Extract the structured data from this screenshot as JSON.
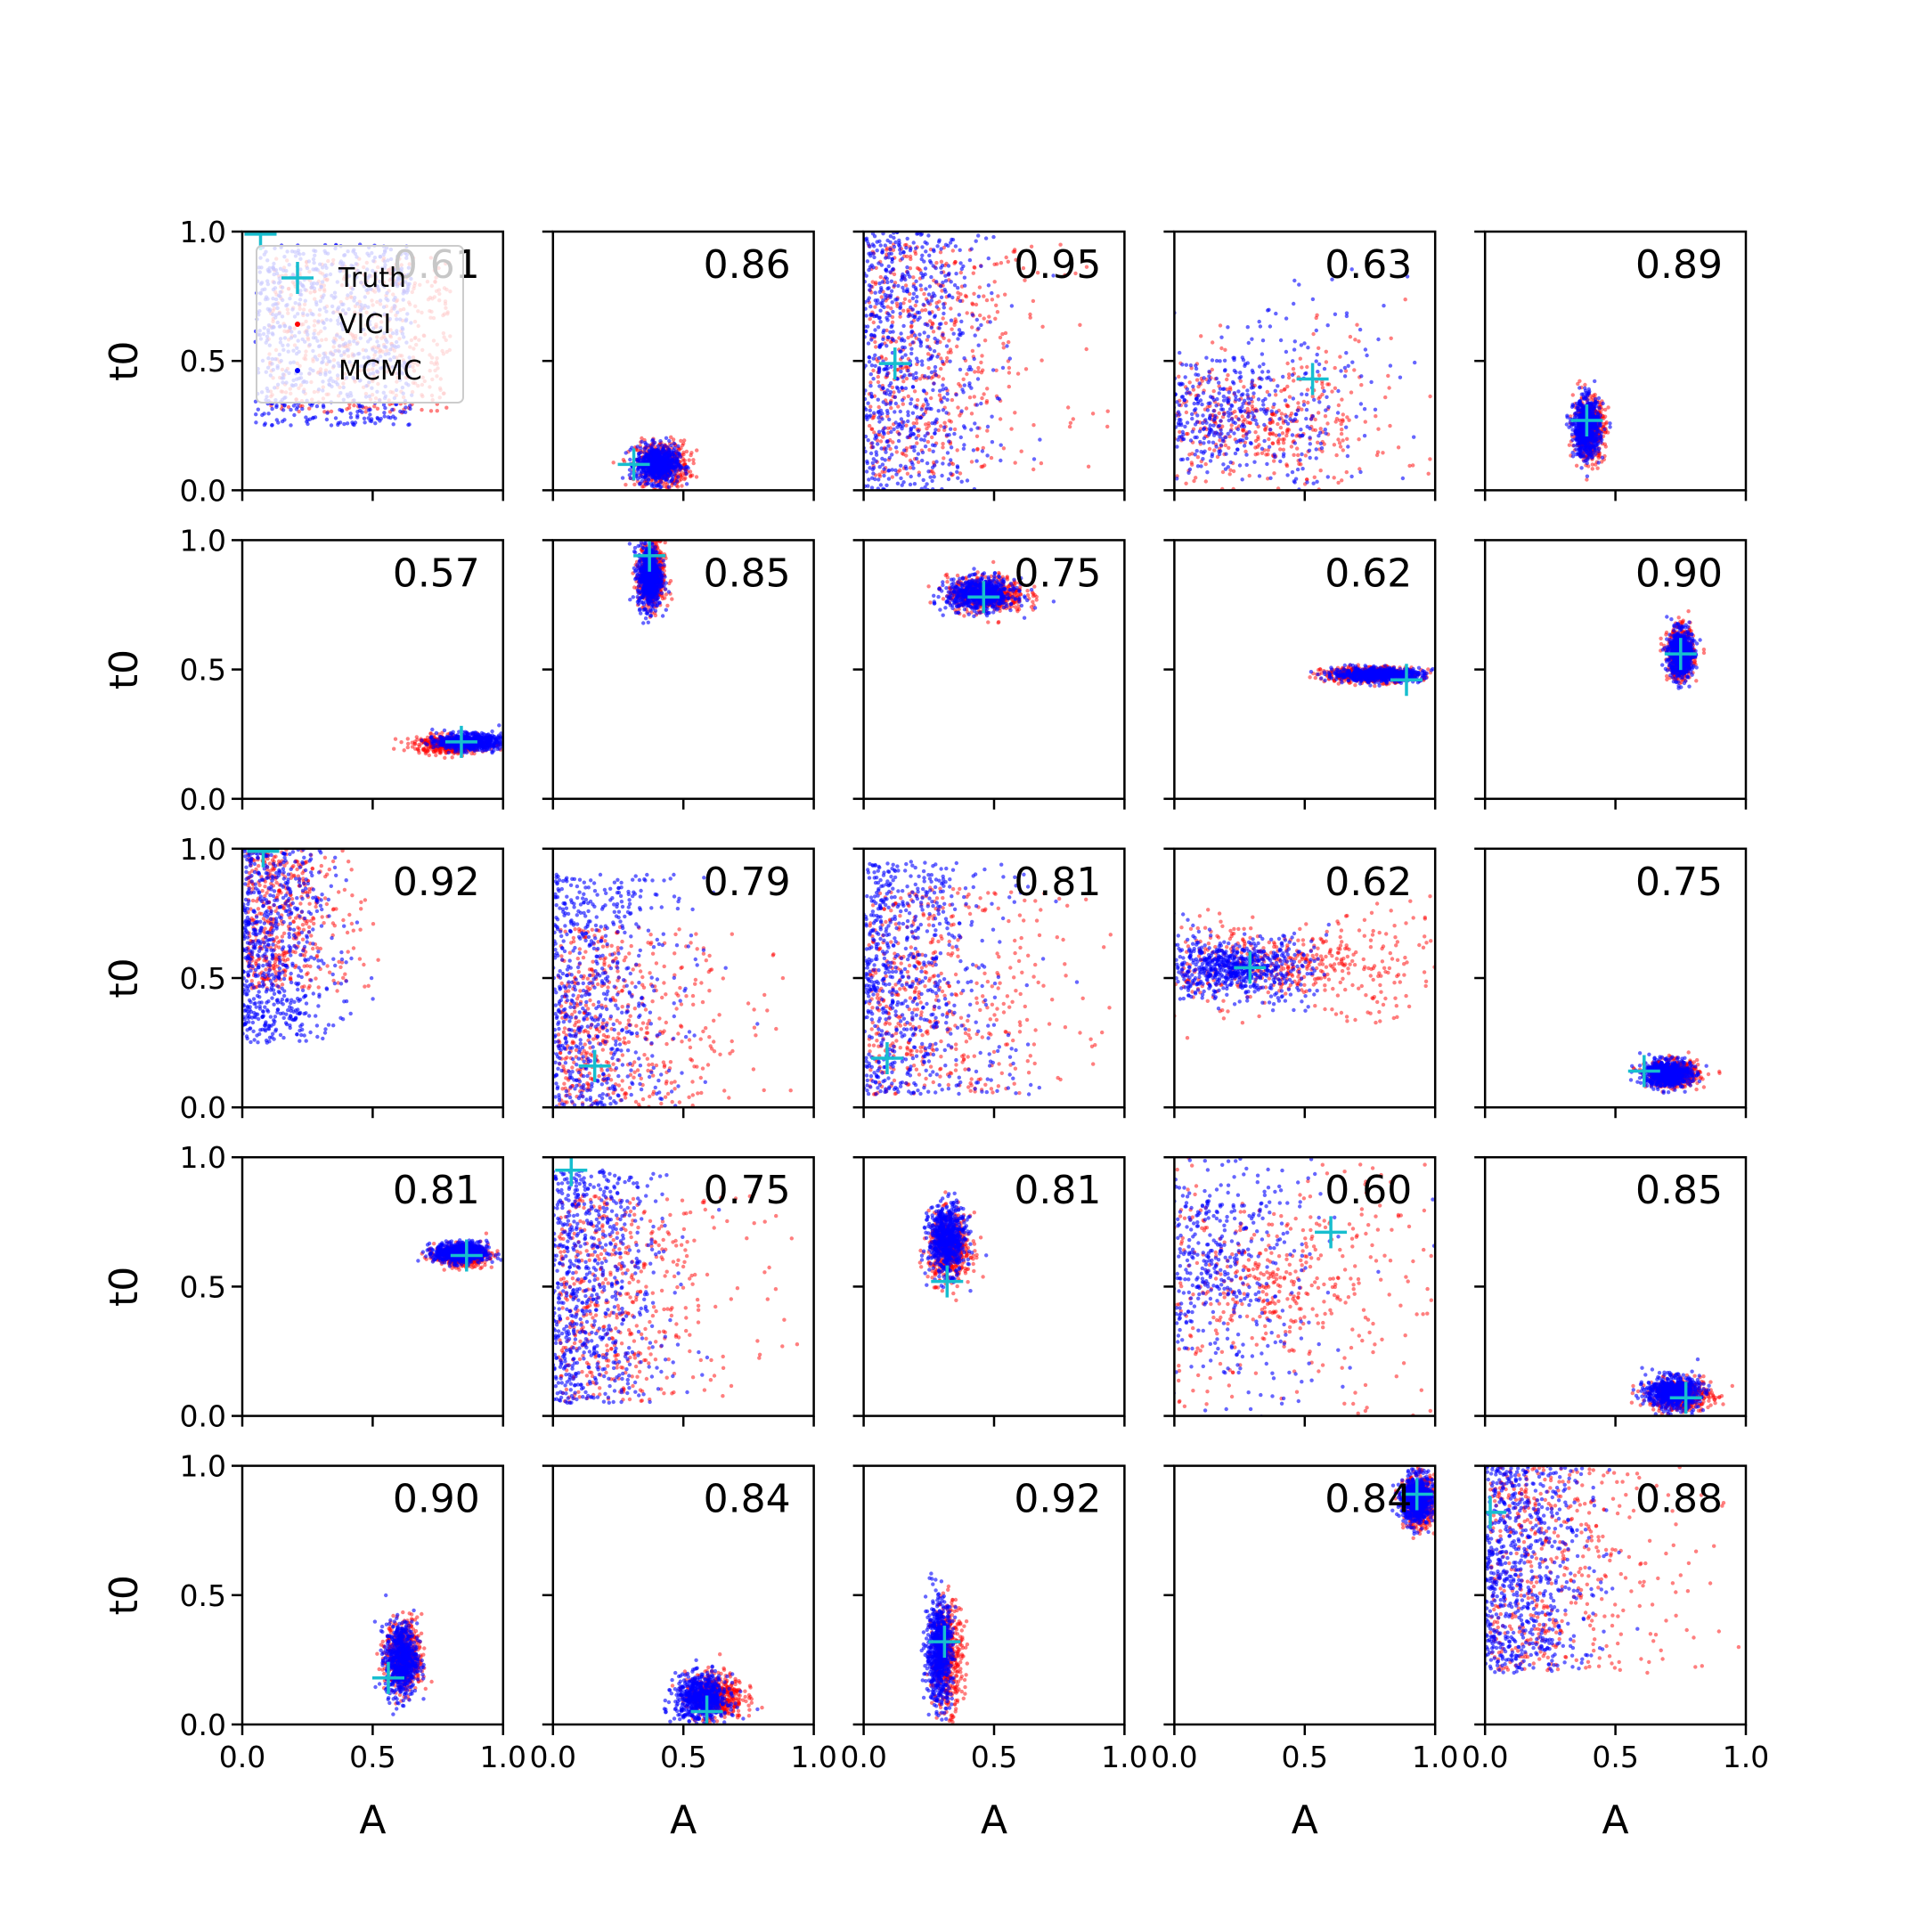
{
  "chart_data": {
    "type": "scatter",
    "layout": "5x5 grid of scatter panels",
    "xlabel": "A",
    "ylabel": "t0",
    "xlim": [
      0.0,
      1.0
    ],
    "ylim": [
      0.0,
      1.0
    ],
    "x_ticks": [
      "0.0",
      "0.5",
      "1.0"
    ],
    "y_ticks": [
      "0.0",
      "0.5",
      "1.0"
    ],
    "legend": {
      "placement": "top-left of first panel",
      "entries": [
        {
          "label": "Truth",
          "color": "#17becf",
          "marker": "plus"
        },
        {
          "label": "VICI",
          "color": "#ff0000",
          "marker": "dot"
        },
        {
          "label": "MCMC",
          "color": "#0000ff",
          "marker": "dot"
        }
      ]
    },
    "colors": {
      "vici": "#ff0000",
      "mcmc": "#0000ff",
      "truth": "#17becf"
    },
    "panels": [
      {
        "score": "0.61",
        "truth": [
          0.07,
          0.99
        ],
        "shape": "scatter-wide",
        "mcmc_center": [
          0.35,
          0.6
        ],
        "mcmc_spread": [
          0.3,
          0.35
        ],
        "vici_center": [
          0.45,
          0.6
        ],
        "vici_spread": [
          0.35,
          0.3
        ]
      },
      {
        "score": "0.86",
        "truth": [
          0.31,
          0.1
        ],
        "shape": "blob",
        "mcmc_center": [
          0.4,
          0.1
        ],
        "mcmc_spread": [
          0.08,
          0.07
        ],
        "vici_center": [
          0.42,
          0.1
        ],
        "vici_spread": [
          0.1,
          0.09
        ]
      },
      {
        "score": "0.95",
        "truth": [
          0.12,
          0.49
        ],
        "shape": "left-edge-spray",
        "mcmc_center": [
          0.03,
          0.5
        ],
        "mcmc_spread": [
          0.4,
          0.5
        ],
        "vici_center": [
          0.3,
          0.5
        ],
        "vici_spread": [
          0.35,
          0.45
        ]
      },
      {
        "score": "0.63",
        "truth": [
          0.53,
          0.43
        ],
        "shape": "fan",
        "mcmc_center": [
          0.15,
          0.3
        ],
        "mcmc_spread": [
          0.3,
          0.25
        ],
        "vici_center": [
          0.3,
          0.25
        ],
        "vici_spread": [
          0.3,
          0.2
        ]
      },
      {
        "score": "0.89",
        "truth": [
          0.39,
          0.27
        ],
        "shape": "blob",
        "mcmc_center": [
          0.39,
          0.24
        ],
        "mcmc_spread": [
          0.05,
          0.11
        ],
        "vici_center": [
          0.4,
          0.24
        ],
        "vici_spread": [
          0.06,
          0.12
        ]
      },
      {
        "score": "0.57",
        "truth": [
          0.84,
          0.22
        ],
        "shape": "blob",
        "mcmc_center": [
          0.87,
          0.22
        ],
        "mcmc_spread": [
          0.12,
          0.03
        ],
        "vici_center": [
          0.8,
          0.21
        ],
        "vici_spread": [
          0.14,
          0.035
        ]
      },
      {
        "score": "0.85",
        "truth": [
          0.37,
          0.94
        ],
        "shape": "blob",
        "mcmc_center": [
          0.37,
          0.86
        ],
        "mcmc_spread": [
          0.045,
          0.12
        ],
        "vici_center": [
          0.38,
          0.86
        ],
        "vici_spread": [
          0.05,
          0.13
        ]
      },
      {
        "score": "0.75",
        "truth": [
          0.46,
          0.78
        ],
        "shape": "blob",
        "mcmc_center": [
          0.45,
          0.79
        ],
        "mcmc_spread": [
          0.13,
          0.06
        ],
        "vici_center": [
          0.47,
          0.79
        ],
        "vici_spread": [
          0.15,
          0.07
        ]
      },
      {
        "score": "0.62",
        "truth": [
          0.89,
          0.46
        ],
        "shape": "blob",
        "mcmc_center": [
          0.78,
          0.48
        ],
        "mcmc_spread": [
          0.17,
          0.025
        ],
        "vici_center": [
          0.75,
          0.48
        ],
        "vici_spread": [
          0.18,
          0.03
        ]
      },
      {
        "score": "0.90",
        "truth": [
          0.75,
          0.56
        ],
        "shape": "blob",
        "mcmc_center": [
          0.75,
          0.56
        ],
        "mcmc_spread": [
          0.045,
          0.09
        ],
        "vici_center": [
          0.75,
          0.56
        ],
        "vici_spread": [
          0.05,
          0.1
        ]
      },
      {
        "score": "0.92",
        "truth": [
          0.08,
          0.99
        ],
        "shape": "left-edge-spray",
        "mcmc_center": [
          0.05,
          0.65
        ],
        "mcmc_spread": [
          0.3,
          0.4
        ],
        "vici_center": [
          0.25,
          0.75
        ],
        "vici_spread": [
          0.2,
          0.3
        ]
      },
      {
        "score": "0.79",
        "truth": [
          0.16,
          0.16
        ],
        "shape": "left-edge-spray",
        "mcmc_center": [
          0.05,
          0.4
        ],
        "mcmc_spread": [
          0.4,
          0.5
        ],
        "vici_center": [
          0.35,
          0.35
        ],
        "vici_spread": [
          0.35,
          0.35
        ]
      },
      {
        "score": "0.81",
        "truth": [
          0.09,
          0.19
        ],
        "shape": "left-edge-spray",
        "mcmc_center": [
          0.05,
          0.5
        ],
        "mcmc_spread": [
          0.45,
          0.45
        ],
        "vici_center": [
          0.4,
          0.45
        ],
        "vici_spread": [
          0.4,
          0.4
        ]
      },
      {
        "score": "0.62",
        "truth": [
          0.29,
          0.54
        ],
        "shape": "fan",
        "mcmc_center": [
          0.22,
          0.54
        ],
        "mcmc_spread": [
          0.15,
          0.1
        ],
        "vici_center": [
          0.45,
          0.55
        ],
        "vici_spread": [
          0.3,
          0.12
        ]
      },
      {
        "score": "0.75",
        "truth": [
          0.61,
          0.14
        ],
        "shape": "blob",
        "mcmc_center": [
          0.7,
          0.13
        ],
        "mcmc_spread": [
          0.09,
          0.05
        ],
        "vici_center": [
          0.72,
          0.13
        ],
        "vici_spread": [
          0.1,
          0.05
        ]
      },
      {
        "score": "0.81",
        "truth": [
          0.86,
          0.62
        ],
        "shape": "blob",
        "mcmc_center": [
          0.84,
          0.63
        ],
        "mcmc_spread": [
          0.1,
          0.04
        ],
        "vici_center": [
          0.84,
          0.62
        ],
        "vici_spread": [
          0.1,
          0.04
        ]
      },
      {
        "score": "0.75",
        "truth": [
          0.07,
          0.95
        ],
        "shape": "left-edge-spray",
        "mcmc_center": [
          0.05,
          0.5
        ],
        "mcmc_spread": [
          0.35,
          0.45
        ],
        "vici_center": [
          0.4,
          0.45
        ],
        "vici_spread": [
          0.35,
          0.4
        ]
      },
      {
        "score": "0.81",
        "truth": [
          0.32,
          0.52
        ],
        "shape": "blob",
        "mcmc_center": [
          0.32,
          0.68
        ],
        "mcmc_spread": [
          0.07,
          0.13
        ],
        "vici_center": [
          0.33,
          0.65
        ],
        "vici_spread": [
          0.08,
          0.13
        ]
      },
      {
        "score": "0.60",
        "truth": [
          0.6,
          0.71
        ],
        "shape": "fan",
        "mcmc_center": [
          0.1,
          0.6
        ],
        "mcmc_spread": [
          0.25,
          0.4
        ],
        "vici_center": [
          0.35,
          0.5
        ],
        "vici_spread": [
          0.3,
          0.3
        ]
      },
      {
        "score": "0.85",
        "truth": [
          0.77,
          0.07
        ],
        "shape": "blob",
        "mcmc_center": [
          0.72,
          0.09
        ],
        "mcmc_spread": [
          0.1,
          0.06
        ],
        "vici_center": [
          0.75,
          0.08
        ],
        "vici_spread": [
          0.12,
          0.06
        ]
      },
      {
        "score": "0.90",
        "truth": [
          0.56,
          0.18
        ],
        "shape": "blob",
        "mcmc_center": [
          0.61,
          0.25
        ],
        "mcmc_spread": [
          0.06,
          0.14
        ],
        "vici_center": [
          0.62,
          0.26
        ],
        "vici_spread": [
          0.07,
          0.14
        ]
      },
      {
        "score": "0.84",
        "truth": [
          0.59,
          0.05
        ],
        "shape": "blob",
        "mcmc_center": [
          0.57,
          0.1
        ],
        "mcmc_spread": [
          0.1,
          0.09
        ],
        "vici_center": [
          0.62,
          0.11
        ],
        "vici_spread": [
          0.11,
          0.09
        ]
      },
      {
        "score": "0.92",
        "truth": [
          0.31,
          0.32
        ],
        "shape": "blob",
        "mcmc_center": [
          0.29,
          0.28
        ],
        "mcmc_spread": [
          0.05,
          0.2
        ],
        "vici_center": [
          0.32,
          0.26
        ],
        "vici_spread": [
          0.06,
          0.2
        ]
      },
      {
        "score": "0.84",
        "truth": [
          0.93,
          0.89
        ],
        "shape": "blob",
        "mcmc_center": [
          0.93,
          0.87
        ],
        "mcmc_spread": [
          0.06,
          0.09
        ],
        "vici_center": [
          0.94,
          0.86
        ],
        "vici_spread": [
          0.06,
          0.1
        ]
      },
      {
        "score": "0.88",
        "truth": [
          0.02,
          0.82
        ],
        "shape": "left-edge-spray",
        "mcmc_center": [
          0.05,
          0.6
        ],
        "mcmc_spread": [
          0.35,
          0.4
        ],
        "vici_center": [
          0.35,
          0.6
        ],
        "vici_spread": [
          0.35,
          0.4
        ]
      }
    ]
  }
}
